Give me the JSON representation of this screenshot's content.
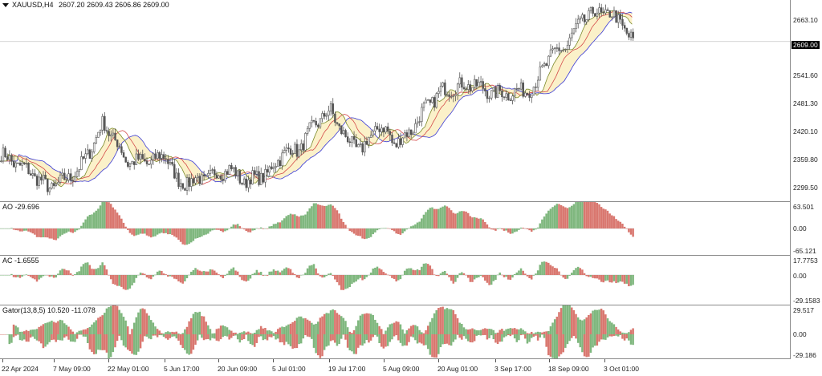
{
  "header": {
    "symbol_tf": "XAUUSD,H4",
    "ohlc": "2607.20 2609.43 2606.86 2609.00"
  },
  "price_axis": {
    "ticks": [
      "2663.10",
      "2541.60",
      "2481.30",
      "2420.10",
      "2359.80",
      "2299.50"
    ],
    "current_price": "2609.00",
    "range": [
      2276,
      2695
    ]
  },
  "ao": {
    "label": "AO -29.696",
    "ticks": [
      "63.501",
      "0.00",
      "-65.121"
    ]
  },
  "ac": {
    "label": "AC -1.6555",
    "ticks": [
      "17.7753",
      "0.00",
      "-29.1583"
    ]
  },
  "gator": {
    "label": "Gator(13,8,5) 10.520 -11.078",
    "ticks": [
      "29.517",
      "0.00",
      "-29.186"
    ]
  },
  "time_axis": {
    "labels": [
      "22 Apr 2024",
      "7 May 09:00",
      "22 May 01:00",
      "5 Jun 17:00",
      "20 Jun 09:00",
      "5 Jul 01:00",
      "19 Jul 17:00",
      "5 Aug 09:00",
      "20 Aug 01:00",
      "3 Sep 17:00",
      "18 Sep 09:00",
      "3 Oct 01:00"
    ]
  },
  "colors": {
    "candle": "#555555",
    "ao_up": "#7fb77e",
    "ao_down": "#d9776f",
    "jaw": "#3b3bd6",
    "teeth": "#d44a4a",
    "lips": "#7a8a2a",
    "gator_fill": "#fbf1c9"
  },
  "chart_data": {
    "type": "candlestick",
    "title": "XAUUSD,H4",
    "y_range": [
      2276,
      2695
    ],
    "x_labels": [
      "22 Apr 2024",
      "7 May 09:00",
      "22 May 01:00",
      "5 Jun 17:00",
      "20 Jun 09:00",
      "5 Jul 01:00",
      "19 Jul 17:00",
      "5 Aug 09:00",
      "20 Aug 01:00",
      "3 Sep 17:00",
      "18 Sep 09:00",
      "3 Oct 01:00"
    ],
    "close_path": [
      [
        0,
        2375
      ],
      [
        0.04,
        2335
      ],
      [
        0.06,
        2305
      ],
      [
        0.08,
        2320
      ],
      [
        0.1,
        2345
      ],
      [
        0.12,
        2405
      ],
      [
        0.13,
        2440
      ],
      [
        0.145,
        2405
      ],
      [
        0.16,
        2360
      ],
      [
        0.19,
        2360
      ],
      [
        0.21,
        2375
      ],
      [
        0.225,
        2315
      ],
      [
        0.26,
        2325
      ],
      [
        0.29,
        2345
      ],
      [
        0.31,
        2318
      ],
      [
        0.34,
        2335
      ],
      [
        0.36,
        2380
      ],
      [
        0.38,
        2385
      ],
      [
        0.4,
        2440
      ],
      [
        0.42,
        2465
      ],
      [
        0.44,
        2405
      ],
      [
        0.46,
        2385
      ],
      [
        0.48,
        2435
      ],
      [
        0.495,
        2415
      ],
      [
        0.5,
        2395
      ],
      [
        0.52,
        2420
      ],
      [
        0.54,
        2470
      ],
      [
        0.56,
        2505
      ],
      [
        0.58,
        2515
      ],
      [
        0.6,
        2520
      ],
      [
        0.63,
        2500
      ],
      [
        0.66,
        2505
      ],
      [
        0.68,
        2515
      ],
      [
        0.69,
        2555
      ],
      [
        0.7,
        2580
      ],
      [
        0.72,
        2600
      ],
      [
        0.74,
        2655
      ],
      [
        0.76,
        2670
      ],
      [
        0.775,
        2665
      ],
      [
        0.79,
        2650
      ],
      [
        0.8,
        2615
      ],
      [
        0.805,
        2609
      ]
    ]
  }
}
